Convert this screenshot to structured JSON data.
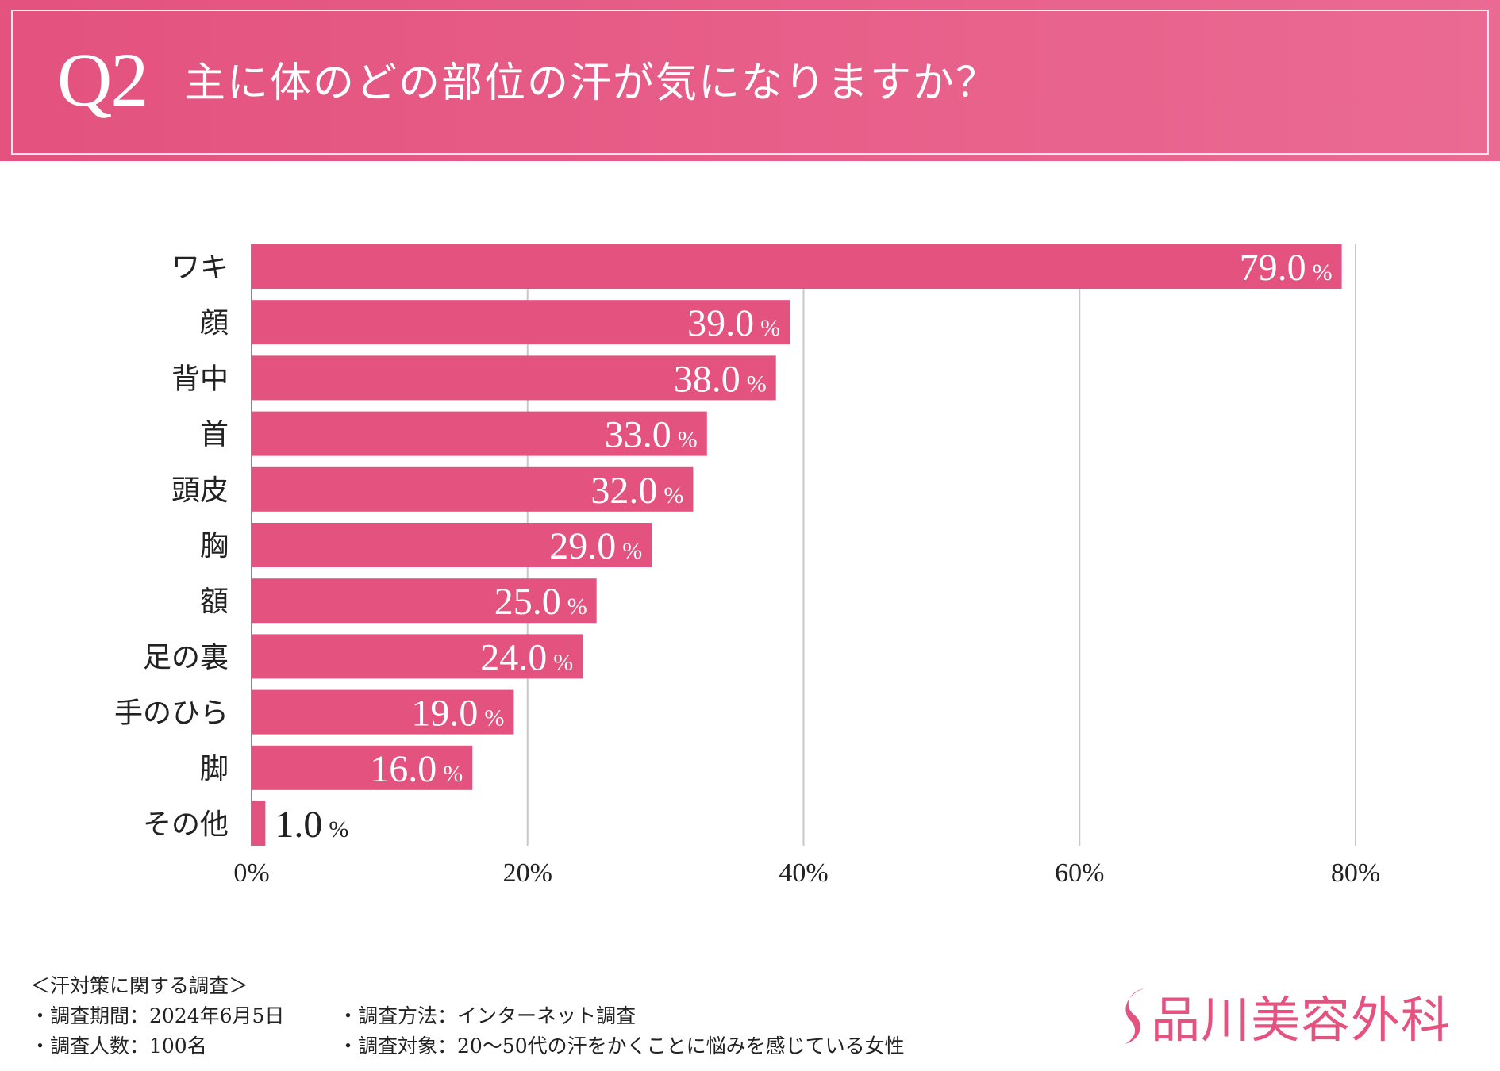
{
  "header": {
    "q_number": "Q2",
    "question": "主に体のどの部位の汗が気になりますか？"
  },
  "colors": {
    "bar": "#e4527f",
    "header": "#e4527f",
    "grid": "#c8c8c8"
  },
  "chart_data": {
    "type": "bar",
    "orientation": "horizontal",
    "categories": [
      "ワキ",
      "顔",
      "背中",
      "首",
      "頭皮",
      "胸",
      "額",
      "足の裏",
      "手のひら",
      "脚",
      "その他"
    ],
    "values": [
      79.0,
      39.0,
      38.0,
      33.0,
      32.0,
      29.0,
      25.0,
      24.0,
      19.0,
      16.0,
      1.0
    ],
    "value_labels": [
      "79.0",
      "39.0",
      "38.0",
      "33.0",
      "32.0",
      "29.0",
      "25.0",
      "24.0",
      "19.0",
      "16.0",
      "1.0"
    ],
    "unit": "%",
    "xlim": [
      0,
      80
    ],
    "xticks": [
      "0%",
      "20%",
      "40%",
      "60%",
      "80%"
    ],
    "xtick_values": [
      0,
      20,
      40,
      60,
      80
    ],
    "grid": true
  },
  "footer": {
    "survey_title": "＜汗対策に関する調査＞",
    "period": "・調査期間：2024年6月5日",
    "method": "・調査方法：インターネット調査",
    "count": "・調査人数：100名",
    "target": "・調査対象：20～50代の汗をかくことに悩みを感じている女性"
  },
  "logo": {
    "text": "品川美容外科",
    "icon": "s-swoosh-icon"
  }
}
